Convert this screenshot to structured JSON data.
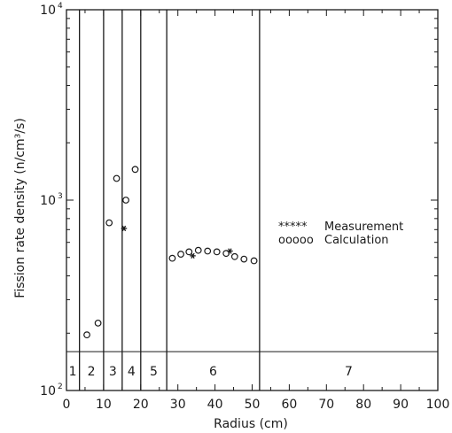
{
  "chart_data": {
    "type": "scatter",
    "title": "",
    "xlabel": "Radius (cm)",
    "ylabel": "Fission rate density (n/cm³/s)",
    "xlim": [
      0,
      100
    ],
    "ylim": [
      100,
      10000
    ],
    "y_scale": "log",
    "x_ticks": [
      0,
      10,
      20,
      30,
      40,
      50,
      60,
      70,
      80,
      90,
      100
    ],
    "x_tick_labels": [
      "0",
      "10",
      "20",
      "30",
      "40",
      "50",
      "60",
      "70",
      "80",
      "90",
      "100"
    ],
    "y_ticks": [
      {
        "value": 100,
        "mantissa": "10",
        "exponent": "2"
      },
      {
        "value": 1000,
        "mantissa": "10",
        "exponent": "3"
      },
      {
        "value": 10000,
        "mantissa": "10",
        "exponent": "4"
      }
    ],
    "zone_boundaries": [
      3.5,
      10,
      15,
      20,
      27,
      52
    ],
    "zone_band_y": 160,
    "zones": [
      {
        "label": "1",
        "x": 1.7
      },
      {
        "label": "2",
        "x": 6.7
      },
      {
        "label": "3",
        "x": 12.5
      },
      {
        "label": "4",
        "x": 17.5
      },
      {
        "label": "5",
        "x": 23.5
      },
      {
        "label": "6",
        "x": 39.5
      },
      {
        "label": "7",
        "x": 76
      }
    ],
    "series": [
      {
        "name": "Measurement",
        "marker": "*",
        "points": [
          {
            "x": 15.5,
            "y": 710
          },
          {
            "x": 34,
            "y": 510
          },
          {
            "x": 44,
            "y": 540
          }
        ]
      },
      {
        "name": "Calculation",
        "marker": "o",
        "points": [
          {
            "x": 5.5,
            "y": 196
          },
          {
            "x": 8.5,
            "y": 226
          },
          {
            "x": 11.5,
            "y": 760
          },
          {
            "x": 13.5,
            "y": 1300
          },
          {
            "x": 16,
            "y": 1000
          },
          {
            "x": 18.5,
            "y": 1450
          },
          {
            "x": 28.5,
            "y": 495
          },
          {
            "x": 30.8,
            "y": 520
          },
          {
            "x": 33,
            "y": 535
          },
          {
            "x": 35.5,
            "y": 545
          },
          {
            "x": 38,
            "y": 540
          },
          {
            "x": 40.5,
            "y": 535
          },
          {
            "x": 43,
            "y": 525
          },
          {
            "x": 45.3,
            "y": 505
          },
          {
            "x": 47.8,
            "y": 490
          },
          {
            "x": 50.5,
            "y": 480
          }
        ]
      }
    ],
    "legend": {
      "placement": "right-middle",
      "entries": [
        {
          "symbol": "*****",
          "label": "Measurement"
        },
        {
          "symbol": "ooooo",
          "label": "Calculation"
        }
      ]
    },
    "grid": false
  }
}
